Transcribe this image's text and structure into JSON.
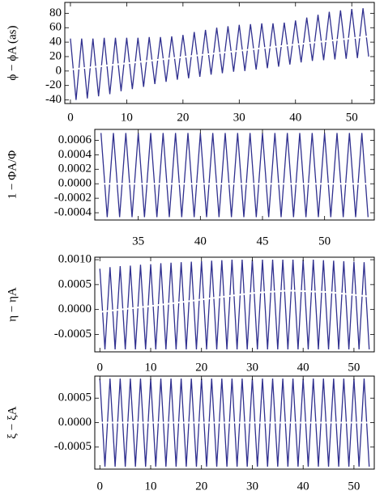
{
  "chart_data": [
    {
      "type": "line",
      "ylabel": "ϕ − ϕA (as)",
      "xlim": [
        -1,
        54
      ],
      "xticks": [
        0,
        10,
        20,
        30,
        40,
        50
      ],
      "ylim": [
        -45,
        95
      ],
      "yticks": [
        -40,
        -20,
        0,
        20,
        40,
        60,
        80
      ],
      "series": [
        {
          "color": "#30308f",
          "x": [
            0,
            1,
            2,
            3,
            4,
            5,
            6,
            7,
            8,
            9,
            10,
            11,
            12,
            13,
            14,
            15,
            16,
            17,
            18,
            19,
            20,
            21,
            22,
            23,
            24,
            25,
            26,
            27,
            28,
            29,
            30,
            31,
            32,
            33,
            34,
            35,
            36,
            37,
            38,
            39,
            40,
            41,
            42,
            43,
            44,
            45,
            46,
            47,
            48,
            49,
            50,
            51,
            52,
            53
          ],
          "values": [
            45,
            -40,
            45,
            -38,
            45,
            -35,
            46,
            -32,
            46,
            -28,
            46,
            -25,
            46,
            -22,
            47,
            -18,
            47,
            -15,
            48,
            -12,
            50,
            -10,
            54,
            -8,
            57,
            -5,
            60,
            -3,
            62,
            -1,
            64,
            0,
            65,
            2,
            66,
            4,
            66,
            6,
            67,
            9,
            70,
            12,
            74,
            14,
            78,
            15,
            82,
            16,
            84,
            17,
            86,
            18,
            87,
            20
          ]
        },
        {
          "color": "#ffffff",
          "x": [
            0,
            53
          ],
          "values": [
            2,
            48
          ]
        }
      ]
    },
    {
      "type": "line",
      "ylabel": "1 − ΦA/Φ",
      "xlim": [
        31.5,
        54
      ],
      "xticks": [
        35,
        40,
        45,
        50
      ],
      "ylim": [
        -0.0005,
        0.00075
      ],
      "yticks": [
        -0.0004,
        -0.0002,
        {
          "value": 0,
          "label": "0.0000"
        },
        0.0002,
        0.0004,
        0.0006
      ],
      "series": [
        {
          "color": "#30308f",
          "x": [
            32,
            32.5,
            33,
            33.5,
            34,
            34.5,
            35,
            35.5,
            36,
            36.5,
            37,
            37.5,
            38,
            38.5,
            39,
            39.5,
            40,
            40.5,
            41,
            41.5,
            42,
            42.5,
            43,
            43.5,
            44,
            44.5,
            45,
            45.5,
            46,
            46.5,
            47,
            47.5,
            48,
            48.5,
            49,
            49.5,
            50,
            50.5,
            51,
            51.5,
            52,
            52.5,
            53,
            53.5
          ],
          "values": [
            0.0007,
            -0.00046,
            0.0007,
            -0.00046,
            0.0007,
            -0.00046,
            0.0007,
            -0.00046,
            0.0007,
            -0.00046,
            0.0007,
            -0.00046,
            0.0007,
            -0.00046,
            0.0007,
            -0.00046,
            0.0007,
            -0.00046,
            0.0007,
            -0.00046,
            0.0007,
            -0.00046,
            0.0007,
            -0.00046,
            0.0007,
            -0.00046,
            0.0007,
            -0.00046,
            0.0007,
            -0.00046,
            0.0007,
            -0.00046,
            0.0007,
            -0.00046,
            0.0007,
            -0.00046,
            0.0007,
            -0.00046,
            0.0007,
            -0.00046,
            0.0007,
            -0.00046,
            0.0007,
            -0.00046
          ]
        },
        {
          "color": "#ffffff",
          "x": [
            32,
            53.5
          ],
          "values": [
            0,
            0
          ]
        }
      ]
    },
    {
      "type": "line",
      "ylabel": "η − ηA",
      "xlim": [
        -1,
        54
      ],
      "xticks": [
        0,
        10,
        20,
        30,
        40,
        50
      ],
      "ylim": [
        -0.00085,
        0.00105
      ],
      "yticks": [
        -0.0005,
        {
          "value": 0,
          "label": "0.0000"
        },
        0.0005,
        {
          "value": 0.001,
          "label": "0.0010"
        }
      ],
      "series": [
        {
          "color": "#30308f",
          "x": [
            0,
            1,
            2,
            3,
            4,
            5,
            6,
            7,
            8,
            9,
            10,
            11,
            12,
            13,
            14,
            15,
            16,
            17,
            18,
            19,
            20,
            21,
            22,
            23,
            24,
            25,
            26,
            27,
            28,
            29,
            30,
            31,
            32,
            33,
            34,
            35,
            36,
            37,
            38,
            39,
            40,
            41,
            42,
            43,
            44,
            45,
            46,
            47,
            48,
            49,
            50,
            51,
            52,
            53
          ],
          "values": [
            0.00082,
            -0.0008,
            0.00085,
            -0.0008,
            0.00087,
            -0.0008,
            0.00088,
            -0.0008,
            0.0009,
            -0.0008,
            0.00091,
            -0.0008,
            0.00093,
            -0.0008,
            0.00094,
            -0.0008,
            0.00095,
            -0.0008,
            0.00096,
            -0.0008,
            0.00097,
            -0.0008,
            0.00098,
            -0.0008,
            0.00099,
            -0.0008,
            0.001,
            -0.0008,
            0.001,
            -0.0008,
            0.001,
            -0.0008,
            0.001,
            -0.0008,
            0.001,
            -0.0008,
            0.001,
            -0.0008,
            0.001,
            -0.0008,
            0.001,
            -0.0008,
            0.001,
            -0.0008,
            0.00099,
            -0.0008,
            0.00098,
            -0.0008,
            0.00097,
            -0.0008,
            0.00096,
            -0.0008,
            0.00095,
            -0.0008
          ]
        },
        {
          "color": "#ffffff",
          "x": [
            0,
            10,
            20,
            30,
            37,
            45,
            53
          ],
          "values": [
            -5e-05,
            7e-05,
            0.0002,
            0.00033,
            0.00038,
            0.00035,
            0.00026
          ]
        }
      ]
    },
    {
      "type": "line",
      "ylabel": "ξ − ξA",
      "xlim": [
        -1,
        54
      ],
      "xticks": [
        0,
        10,
        20,
        30,
        40,
        50
      ],
      "ylim": [
        -0.00095,
        0.00095
      ],
      "yticks": [
        -0.0005,
        {
          "value": 0,
          "label": "0.0000"
        },
        0.0005
      ],
      "series": [
        {
          "color": "#30308f",
          "x": [
            0,
            1,
            2,
            3,
            4,
            5,
            6,
            7,
            8,
            9,
            10,
            11,
            12,
            13,
            14,
            15,
            16,
            17,
            18,
            19,
            20,
            21,
            22,
            23,
            24,
            25,
            26,
            27,
            28,
            29,
            30,
            31,
            32,
            33,
            34,
            35,
            36,
            37,
            38,
            39,
            40,
            41,
            42,
            43,
            44,
            45,
            46,
            47,
            48,
            49,
            50,
            51,
            52,
            53
          ],
          "values": [
            0.0009,
            -0.0009,
            0.0009,
            -0.0009,
            0.0009,
            -0.0009,
            0.0009,
            -0.0009,
            0.0009,
            -0.0009,
            0.0009,
            -0.0009,
            0.0009,
            -0.0009,
            0.0009,
            -0.0009,
            0.0009,
            -0.0009,
            0.0009,
            -0.0009,
            0.0009,
            -0.0009,
            0.0009,
            -0.0009,
            0.0009,
            -0.0009,
            0.0009,
            -0.0009,
            0.0009,
            -0.0009,
            0.0009,
            -0.0009,
            0.0009,
            -0.0009,
            0.0009,
            -0.0009,
            0.0009,
            -0.0009,
            0.0009,
            -0.0009,
            0.0009,
            -0.0009,
            0.0009,
            -0.0009,
            0.0009,
            -0.0009,
            0.0009,
            -0.0009,
            0.0009,
            -0.0009,
            0.0009,
            -0.0009,
            0.0009,
            -0.0009
          ]
        },
        {
          "color": "#ffffff",
          "x": [
            0,
            53
          ],
          "values": [
            0,
            0
          ]
        }
      ]
    }
  ]
}
